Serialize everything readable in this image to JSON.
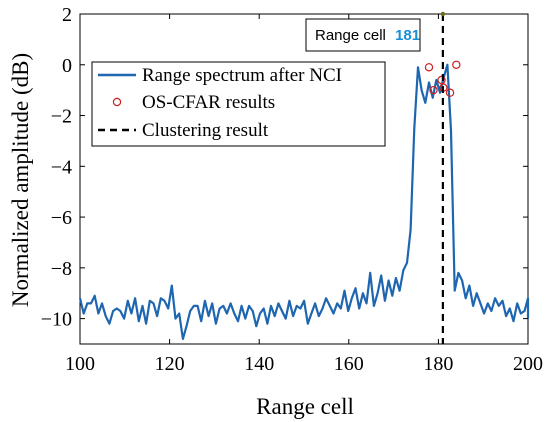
{
  "chart_data": {
    "type": "line",
    "xlabel": "Range cell",
    "ylabel": "Normalized amplitude (dB)",
    "xlim": [
      100,
      200
    ],
    "ylim": [
      -11,
      2
    ],
    "xticks": [
      100,
      120,
      140,
      160,
      180,
      200
    ],
    "yticks": [
      2,
      0,
      -2,
      -4,
      -6,
      -8,
      -10
    ],
    "ytick_labels": [
      "2",
      "0",
      "−2",
      "−4",
      "−6",
      "−8",
      "−10"
    ],
    "grid": false,
    "legend_position": "top-left",
    "series": [
      {
        "name": "Range spectrum after NCI",
        "color": "#1f66b0",
        "x_start": 100,
        "values": [
          -9.2,
          -9.8,
          -9.4,
          -9.4,
          -9.1,
          -9.8,
          -9.4,
          -9.9,
          -10.2,
          -9.7,
          -9.6,
          -9.7,
          -10.0,
          -9.3,
          -9.8,
          -9.2,
          -10.1,
          -9.5,
          -10.2,
          -9.3,
          -9.4,
          -9.9,
          -9.2,
          -9.3,
          -9.6,
          -8.7,
          -10.0,
          -9.8,
          -10.8,
          -10.3,
          -9.7,
          -9.5,
          -9.5,
          -10.1,
          -9.3,
          -9.9,
          -9.4,
          -10.2,
          -9.6,
          -9.5,
          -9.8,
          -9.4,
          -9.8,
          -10.1,
          -9.5,
          -10.0,
          -9.5,
          -9.7,
          -10.3,
          -9.8,
          -9.6,
          -10.2,
          -9.5,
          -9.9,
          -9.4,
          -9.7,
          -10.0,
          -9.3,
          -9.9,
          -9.5,
          -9.6,
          -9.3,
          -10.2,
          -9.8,
          -9.4,
          -9.9,
          -9.6,
          -9.2,
          -9.5,
          -9.8,
          -9.4,
          -9.6,
          -8.9,
          -9.7,
          -9.2,
          -8.8,
          -9.6,
          -9.0,
          -9.4,
          -8.2,
          -9.5,
          -9.0,
          -8.3,
          -9.3,
          -8.5,
          -9.1,
          -8.4,
          -8.9,
          -8.1,
          -7.8,
          -6.5,
          -2.5,
          -0.1,
          -1.0,
          -1.5,
          -0.7,
          -1.3,
          -0.6,
          -1.1,
          -0.5,
          0.0,
          -2.6,
          -8.9,
          -8.2,
          -8.5,
          -9.2,
          -8.7,
          -9.5,
          -9.0,
          -9.4,
          -9.8,
          -9.4,
          -9.7,
          -9.2,
          -9.5,
          -9.3,
          -9.9,
          -9.6,
          -10.1,
          -9.4,
          -9.8,
          -9.7,
          -9.2,
          -10.0
        ]
      }
    ],
    "x_step": 0.82,
    "os_cfar": {
      "name": "OS-CFAR results",
      "color": "#cc1f1f",
      "points": [
        {
          "x": 177.9,
          "y": -0.1
        },
        {
          "x": 178.9,
          "y": -1.0
        },
        {
          "x": 180.7,
          "y": -0.6
        },
        {
          "x": 181.1,
          "y": -0.9
        },
        {
          "x": 182.6,
          "y": -1.1
        },
        {
          "x": 184.0,
          "y": 0.0
        }
      ]
    },
    "clustering": {
      "name": "Clustering result",
      "x": 181
    },
    "tooltip": {
      "label": "Range cell",
      "value": "181",
      "value_color": "#1a8fd6"
    }
  }
}
